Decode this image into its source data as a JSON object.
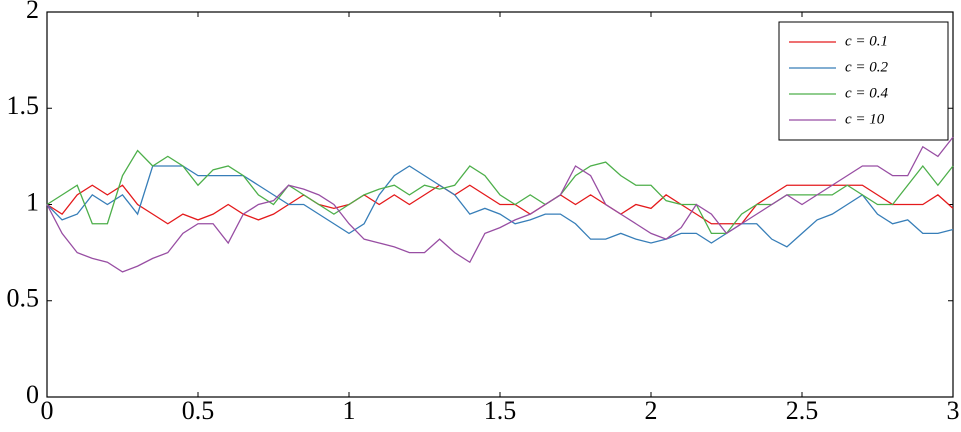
{
  "chart_data": {
    "type": "line",
    "x": [
      0,
      0.05,
      0.1,
      0.15,
      0.2,
      0.25,
      0.3,
      0.35,
      0.4,
      0.45,
      0.5,
      0.55,
      0.6,
      0.65,
      0.7,
      0.75,
      0.8,
      0.85,
      0.9,
      0.95,
      1,
      1.05,
      1.1,
      1.15,
      1.2,
      1.25,
      1.3,
      1.35,
      1.4,
      1.45,
      1.5,
      1.55,
      1.6,
      1.65,
      1.7,
      1.75,
      1.8,
      1.85,
      1.9,
      1.95,
      2,
      2.05,
      2.1,
      2.15,
      2.2,
      2.25,
      2.3,
      2.35,
      2.4,
      2.45,
      2.5,
      2.55,
      2.6,
      2.65,
      2.7,
      2.75,
      2.8,
      2.85,
      2.9,
      2.95,
      3
    ],
    "series": [
      {
        "name": "c = 0.1",
        "color": "#e41a1c",
        "values": [
          1,
          0.95,
          1.05,
          1.1,
          1.05,
          1.1,
          1.0,
          0.95,
          0.9,
          0.95,
          0.92,
          0.95,
          1.0,
          0.95,
          0.92,
          0.95,
          1.0,
          1.05,
          1.0,
          0.98,
          1.0,
          1.05,
          1.0,
          1.05,
          1.0,
          1.05,
          1.1,
          1.05,
          1.1,
          1.05,
          1.0,
          1.0,
          0.95,
          1.0,
          1.05,
          1.0,
          1.05,
          1.0,
          0.95,
          1.0,
          0.98,
          1.05,
          1.0,
          0.95,
          0.9,
          0.9,
          0.9,
          1.0,
          1.05,
          1.1,
          1.1,
          1.1,
          1.1,
          1.1,
          1.1,
          1.05,
          1.0,
          1.0,
          1.0,
          1.05,
          0.98
        ]
      },
      {
        "name": "c = 0.2",
        "color": "#377eb8",
        "values": [
          1,
          0.92,
          0.95,
          1.05,
          1.0,
          1.05,
          0.95,
          1.2,
          1.2,
          1.2,
          1.15,
          1.15,
          1.15,
          1.15,
          1.1,
          1.05,
          1.0,
          1.0,
          0.95,
          0.9,
          0.85,
          0.9,
          1.05,
          1.15,
          1.2,
          1.15,
          1.1,
          1.05,
          0.95,
          0.98,
          0.95,
          0.9,
          0.92,
          0.95,
          0.95,
          0.9,
          0.82,
          0.82,
          0.85,
          0.82,
          0.8,
          0.82,
          0.85,
          0.85,
          0.8,
          0.85,
          0.9,
          0.9,
          0.82,
          0.78,
          0.85,
          0.92,
          0.95,
          1.0,
          1.05,
          0.95,
          0.9,
          0.92,
          0.85,
          0.85,
          0.87
        ]
      },
      {
        "name": "c = 0.4",
        "color": "#4daf4a",
        "values": [
          1,
          1.05,
          1.1,
          0.9,
          0.9,
          1.15,
          1.28,
          1.2,
          1.25,
          1.2,
          1.1,
          1.18,
          1.2,
          1.15,
          1.05,
          1.0,
          1.1,
          1.05,
          1.0,
          0.95,
          1.0,
          1.05,
          1.08,
          1.1,
          1.05,
          1.1,
          1.08,
          1.1,
          1.2,
          1.15,
          1.05,
          1.0,
          1.05,
          1.0,
          1.05,
          1.15,
          1.2,
          1.22,
          1.15,
          1.1,
          1.1,
          1.02,
          1.0,
          1.0,
          0.85,
          0.85,
          0.95,
          1.0,
          1.0,
          1.05,
          1.05,
          1.05,
          1.05,
          1.1,
          1.05,
          1.0,
          1.0,
          1.1,
          1.2,
          1.1,
          1.2
        ]
      },
      {
        "name": "c = 10",
        "color": "#984ea3",
        "values": [
          1,
          0.85,
          0.75,
          0.72,
          0.7,
          0.65,
          0.68,
          0.72,
          0.75,
          0.85,
          0.9,
          0.9,
          0.8,
          0.95,
          1.0,
          1.02,
          1.1,
          1.08,
          1.05,
          1.0,
          0.9,
          0.82,
          0.8,
          0.78,
          0.75,
          0.75,
          0.82,
          0.75,
          0.7,
          0.85,
          0.88,
          0.92,
          0.95,
          1.0,
          1.05,
          1.2,
          1.15,
          1.0,
          0.95,
          0.9,
          0.85,
          0.82,
          0.88,
          1.0,
          0.95,
          0.85,
          0.9,
          0.95,
          1.0,
          1.05,
          1.0,
          1.05,
          1.1,
          1.15,
          1.2,
          1.2,
          1.15,
          1.15,
          1.3,
          1.25,
          1.35
        ]
      }
    ],
    "xlim": [
      0,
      3
    ],
    "xticks": [
      0,
      0.5,
      1,
      1.5,
      2,
      2.5,
      3
    ],
    "ylim": [
      0,
      2
    ],
    "yticks": [
      0,
      0.5,
      1,
      1.5,
      2
    ],
    "legend": "top-right"
  }
}
